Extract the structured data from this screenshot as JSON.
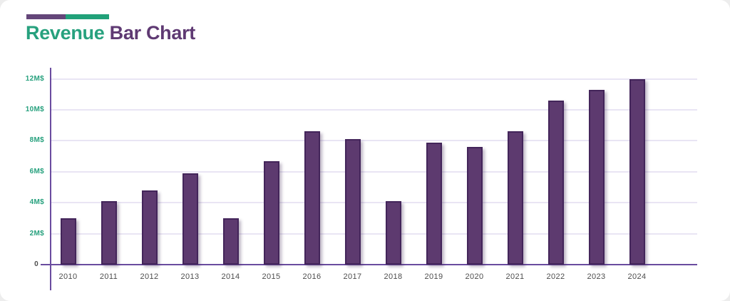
{
  "header": {
    "title_part1": "Revenue",
    "title_part2": " Bar Chart",
    "accent_left_color": "#644679",
    "accent_right_color": "#21a179"
  },
  "colors": {
    "title_green": "#27a17e",
    "title_purple": "#5f3a73",
    "bar_fill": "#5d3a6f",
    "bar_border": "#43255a",
    "axis": "#6a4c9f",
    "gridline": "#e9e5f4",
    "y_tick_label": "#27a17e",
    "x_tick_label": "#4d4d4d"
  },
  "chart_data": {
    "type": "bar",
    "title": "Revenue Bar Chart",
    "xlabel": "",
    "ylabel": "",
    "categories": [
      "2010",
      "2011",
      "2012",
      "2013",
      "2014",
      "2015",
      "2016",
      "2017",
      "2018",
      "2019",
      "2020",
      "2021",
      "2022",
      "2023",
      "2024"
    ],
    "values": [
      3.0,
      4.1,
      4.8,
      5.9,
      3.0,
      6.7,
      8.6,
      8.1,
      4.1,
      7.9,
      7.6,
      8.6,
      10.6,
      11.3,
      12.0
    ],
    "value_unit": "M$",
    "ylim": [
      0,
      12
    ],
    "grid": true,
    "legend_position": "none",
    "y_ticks": [
      {
        "label": "12M$",
        "value": 12
      },
      {
        "label": "10M$",
        "value": 10
      },
      {
        "label": "8M$",
        "value": 8
      },
      {
        "label": "6M$",
        "value": 6
      },
      {
        "label": "4M$",
        "value": 4
      },
      {
        "label": "2M$",
        "value": 2
      },
      {
        "label": "0",
        "value": 0
      }
    ]
  }
}
